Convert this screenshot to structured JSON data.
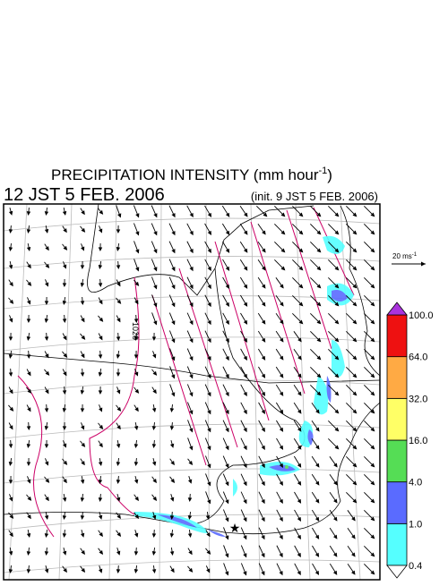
{
  "title": {
    "main": "PRECIPITATION INTENSITY (mm hour",
    "exponent": "-1",
    "end": ")"
  },
  "valid_time": "12 JST 5 FEB. 2006",
  "init_time": "(init. 9 JST 5 FEB. 2006)",
  "vector_reference": {
    "text": "20 ms",
    "exponent": "-1"
  },
  "contour_label": "1020",
  "colorbar": {
    "levels": [
      "0.4",
      "1.0",
      "4.0",
      "16.0",
      "32.0",
      "64.0",
      "100.0"
    ],
    "colors": [
      "#55ffff",
      "#5a6bff",
      "#55dd55",
      "#ffff66",
      "#ffaa44",
      "#ee1111"
    ],
    "over_color": "#aa33dd",
    "under_color": "#ffffff"
  }
}
